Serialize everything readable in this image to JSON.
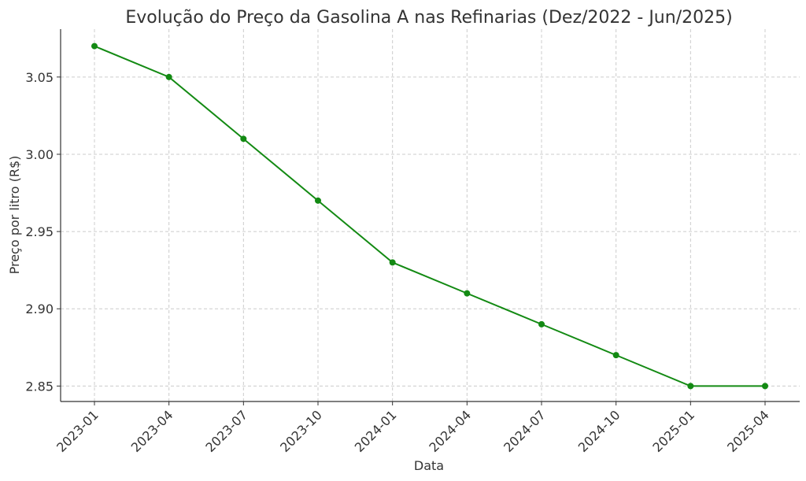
{
  "chart_data": {
    "type": "line",
    "title": "Evolução do Preço da Gasolina A nas Refinarias (Dez/2022 - Jun/2025)",
    "xlabel": "Data",
    "ylabel": "Preço por litro (R$)",
    "x": [
      "2023-01",
      "2023-04",
      "2023-07",
      "2023-10",
      "2024-01",
      "2024-04",
      "2024-07",
      "2024-10",
      "2025-01",
      "2025-04"
    ],
    "series": [
      {
        "values": [
          3.07,
          3.05,
          3.01,
          2.97,
          2.93,
          2.91,
          2.89,
          2.87,
          2.85,
          2.85
        ]
      }
    ],
    "yticks": [
      "2.85",
      "2.90",
      "2.95",
      "3.00",
      "3.05"
    ],
    "ylim": [
      2.84,
      3.081
    ],
    "grid": true,
    "colors": {
      "line": "#138a13"
    }
  }
}
